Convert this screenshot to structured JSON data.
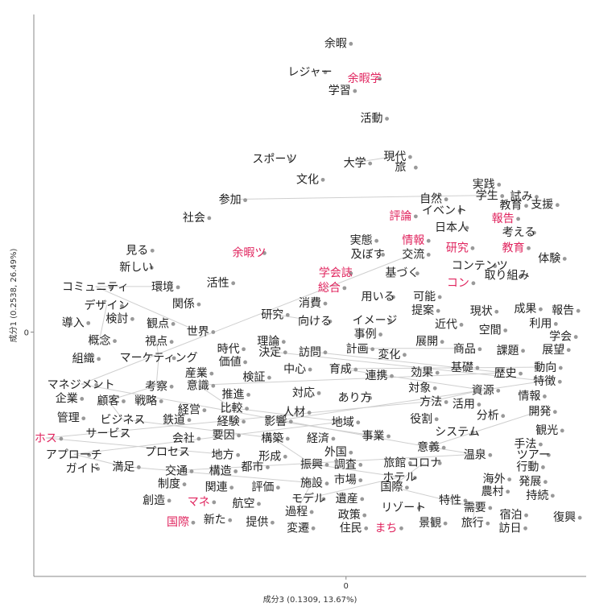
{
  "chart_data": {
    "type": "scatter",
    "xlabel": "成分3 (0.1309, 13.67%)",
    "ylabel": "成分1 (0.2538, 26.49%)",
    "xlim": [
      -3.9,
      3.0
    ],
    "ylim": [
      -3.0,
      3.9
    ],
    "x_ticks": [
      {
        "value": 0,
        "label": "0"
      }
    ],
    "y_ticks": [
      {
        "value": 0,
        "label": "0"
      }
    ],
    "grid": false,
    "legend": "none",
    "colors": {
      "word": "#222222",
      "highlight": "#e0245e",
      "point": "#999999",
      "edge": "#cfcfcf",
      "axis": "#888888"
    },
    "points": [
      {
        "label": "余暇",
        "x": -0.13,
        "y": 3.55,
        "hl": false
      },
      {
        "label": "レジャー",
        "x": -0.45,
        "y": 3.2,
        "hl": false
      },
      {
        "label": "余暇学",
        "x": 0.23,
        "y": 3.12,
        "hl": true
      },
      {
        "label": "学習",
        "x": -0.08,
        "y": 2.97,
        "hl": false
      },
      {
        "label": "活動",
        "x": 0.32,
        "y": 2.63,
        "hl": false
      },
      {
        "label": "スポーツ",
        "x": -0.89,
        "y": 2.13,
        "hl": false
      },
      {
        "label": "大学",
        "x": 0.11,
        "y": 2.08,
        "hl": false
      },
      {
        "label": "現代",
        "x": 0.61,
        "y": 2.16,
        "hl": false
      },
      {
        "label": "旅",
        "x": 0.68,
        "y": 2.03,
        "hl": false
      },
      {
        "label": "文化",
        "x": -0.48,
        "y": 1.88,
        "hl": false
      },
      {
        "label": "実践",
        "x": 1.72,
        "y": 1.82,
        "hl": false
      },
      {
        "label": "学生",
        "x": 1.76,
        "y": 1.68,
        "hl": false
      },
      {
        "label": "試み",
        "x": 2.19,
        "y": 1.67,
        "hl": false
      },
      {
        "label": "参加",
        "x": -1.45,
        "y": 1.63,
        "hl": false
      },
      {
        "label": "自然",
        "x": 1.06,
        "y": 1.64,
        "hl": false
      },
      {
        "label": "教育",
        "x": 2.06,
        "y": 1.56,
        "hl": false
      },
      {
        "label": "支援",
        "x": 2.45,
        "y": 1.57,
        "hl": false
      },
      {
        "label": "イベント",
        "x": 1.23,
        "y": 1.5,
        "hl": false
      },
      {
        "label": "評論",
        "x": 0.68,
        "y": 1.43,
        "hl": true
      },
      {
        "label": "報告",
        "x": 1.96,
        "y": 1.4,
        "hl": true
      },
      {
        "label": "社会",
        "x": -1.9,
        "y": 1.41,
        "hl": false
      },
      {
        "label": "日本人",
        "x": 1.32,
        "y": 1.29,
        "hl": false
      },
      {
        "label": "考える",
        "x": 2.16,
        "y": 1.23,
        "hl": false
      },
      {
        "label": "実態",
        "x": 0.19,
        "y": 1.13,
        "hl": false
      },
      {
        "label": "情報",
        "x": 0.84,
        "y": 1.13,
        "hl": true
      },
      {
        "label": "研究",
        "x": 1.39,
        "y": 1.04,
        "hl": true
      },
      {
        "label": "教育",
        "x": 2.09,
        "y": 1.04,
        "hl": true
      },
      {
        "label": "見る",
        "x": -2.61,
        "y": 1.01,
        "hl": false
      },
      {
        "label": "余暇ツ",
        "x": -1.21,
        "y": 0.98,
        "hl": true
      },
      {
        "label": "及ぼす",
        "x": 0.27,
        "y": 0.96,
        "hl": false
      },
      {
        "label": "交流",
        "x": 0.84,
        "y": 0.96,
        "hl": false
      },
      {
        "label": "体験",
        "x": 2.54,
        "y": 0.91,
        "hl": false
      },
      {
        "label": "新しい",
        "x": -2.62,
        "y": 0.8,
        "hl": false
      },
      {
        "label": "コンテンツ",
        "x": 1.67,
        "y": 0.82,
        "hl": false
      },
      {
        "label": "学会誌",
        "x": -0.13,
        "y": 0.73,
        "hl": true
      },
      {
        "label": "基づく",
        "x": 0.7,
        "y": 0.73,
        "hl": false
      },
      {
        "label": "取り組み",
        "x": 2.01,
        "y": 0.7,
        "hl": false
      },
      {
        "label": "コミュニティ",
        "x": -3.13,
        "y": 0.56,
        "hl": false
      },
      {
        "label": "環境",
        "x": -2.29,
        "y": 0.56,
        "hl": false
      },
      {
        "label": "活性",
        "x": -1.6,
        "y": 0.61,
        "hl": false
      },
      {
        "label": "コン",
        "x": 1.4,
        "y": 0.61,
        "hl": true
      },
      {
        "label": "総合",
        "x": -0.21,
        "y": 0.55,
        "hl": true
      },
      {
        "label": "用いる",
        "x": 0.4,
        "y": 0.44,
        "hl": false
      },
      {
        "label": "可能",
        "x": 0.98,
        "y": 0.44,
        "hl": false
      },
      {
        "label": "消費",
        "x": -0.45,
        "y": 0.36,
        "hl": false
      },
      {
        "label": "デザイン",
        "x": -2.99,
        "y": 0.33,
        "hl": false
      },
      {
        "label": "関係",
        "x": -2.03,
        "y": 0.35,
        "hl": false
      },
      {
        "label": "現状",
        "x": 1.69,
        "y": 0.26,
        "hl": false
      },
      {
        "label": "成果",
        "x": 2.24,
        "y": 0.29,
        "hl": false
      },
      {
        "label": "報告",
        "x": 2.71,
        "y": 0.27,
        "hl": false
      },
      {
        "label": "提案",
        "x": 0.96,
        "y": 0.27,
        "hl": false
      },
      {
        "label": "研究",
        "x": -0.92,
        "y": 0.22,
        "hl": false
      },
      {
        "label": "向ける",
        "x": -0.39,
        "y": 0.14,
        "hl": false
      },
      {
        "label": "検討",
        "x": -2.86,
        "y": 0.17,
        "hl": false
      },
      {
        "label": "イメージ",
        "x": 0.36,
        "y": 0.15,
        "hl": false
      },
      {
        "label": "導入",
        "x": -3.41,
        "y": 0.12,
        "hl": false
      },
      {
        "label": "観点",
        "x": -2.35,
        "y": 0.11,
        "hl": false
      },
      {
        "label": "近代",
        "x": 1.25,
        "y": 0.1,
        "hl": false
      },
      {
        "label": "利用",
        "x": 2.43,
        "y": 0.11,
        "hl": false
      },
      {
        "label": "空間",
        "x": 1.8,
        "y": 0.03,
        "hl": false
      },
      {
        "label": "世界",
        "x": -1.85,
        "y": 0.01,
        "hl": false
      },
      {
        "label": "事例",
        "x": 0.24,
        "y": -0.02,
        "hl": false
      },
      {
        "label": "学会",
        "x": 2.68,
        "y": -0.05,
        "hl": false
      },
      {
        "label": "概念",
        "x": -3.08,
        "y": -0.1,
        "hl": false
      },
      {
        "label": "視点",
        "x": -2.37,
        "y": -0.11,
        "hl": false
      },
      {
        "label": "理論",
        "x": -0.97,
        "y": -0.11,
        "hl": false
      },
      {
        "label": "展開",
        "x": 1.01,
        "y": -0.11,
        "hl": false
      },
      {
        "label": "時代",
        "x": -1.47,
        "y": -0.2,
        "hl": false
      },
      {
        "label": "計画",
        "x": 0.14,
        "y": -0.2,
        "hl": false
      },
      {
        "label": "商品",
        "x": 1.48,
        "y": -0.2,
        "hl": false
      },
      {
        "label": "課題",
        "x": 2.02,
        "y": -0.22,
        "hl": false
      },
      {
        "label": "展望",
        "x": 2.59,
        "y": -0.21,
        "hl": false
      },
      {
        "label": "決定",
        "x": -0.95,
        "y": -0.24,
        "hl": false
      },
      {
        "label": "訪問",
        "x": -0.45,
        "y": -0.24,
        "hl": false
      },
      {
        "label": "変化",
        "x": 0.54,
        "y": -0.27,
        "hl": false
      },
      {
        "label": "組織",
        "x": -3.28,
        "y": -0.32,
        "hl": false
      },
      {
        "label": "マーケティング",
        "x": -2.34,
        "y": -0.31,
        "hl": false
      },
      {
        "label": "価値",
        "x": -1.45,
        "y": -0.36,
        "hl": false
      },
      {
        "label": "中心",
        "x": -0.64,
        "y": -0.45,
        "hl": false
      },
      {
        "label": "育成",
        "x": -0.07,
        "y": -0.45,
        "hl": false
      },
      {
        "label": "動向",
        "x": 2.49,
        "y": -0.43,
        "hl": false
      },
      {
        "label": "基礎",
        "x": 1.45,
        "y": -0.43,
        "hl": false
      },
      {
        "label": "歴史",
        "x": 1.99,
        "y": -0.5,
        "hl": false
      },
      {
        "label": "効果",
        "x": 0.95,
        "y": -0.49,
        "hl": false
      },
      {
        "label": "産業",
        "x": -1.87,
        "y": -0.5,
        "hl": false
      },
      {
        "label": "連携",
        "x": 0.38,
        "y": -0.53,
        "hl": false
      },
      {
        "label": "検証",
        "x": -1.15,
        "y": -0.55,
        "hl": false
      },
      {
        "label": "特徴",
        "x": 2.48,
        "y": -0.6,
        "hl": false
      },
      {
        "label": "マネジメント",
        "x": -3.31,
        "y": -0.64,
        "hl": false
      },
      {
        "label": "考察",
        "x": -2.37,
        "y": -0.66,
        "hl": false
      },
      {
        "label": "意識",
        "x": -1.85,
        "y": -0.65,
        "hl": false
      },
      {
        "label": "対象",
        "x": 0.92,
        "y": -0.68,
        "hl": false
      },
      {
        "label": "資源",
        "x": 1.71,
        "y": -0.71,
        "hl": false
      },
      {
        "label": "推進",
        "x": -1.41,
        "y": -0.76,
        "hl": false
      },
      {
        "label": "情報",
        "x": 2.29,
        "y": -0.78,
        "hl": false
      },
      {
        "label": "企業",
        "x": -3.49,
        "y": -0.81,
        "hl": false
      },
      {
        "label": "顧客",
        "x": -2.97,
        "y": -0.84,
        "hl": false
      },
      {
        "label": "戦略",
        "x": -2.5,
        "y": -0.84,
        "hl": false
      },
      {
        "label": "対応",
        "x": -0.53,
        "y": -0.74,
        "hl": false
      },
      {
        "label": "あり方",
        "x": 0.11,
        "y": -0.8,
        "hl": false
      },
      {
        "label": "方法",
        "x": 1.06,
        "y": -0.85,
        "hl": false
      },
      {
        "label": "比較",
        "x": -1.43,
        "y": -0.93,
        "hl": false
      },
      {
        "label": "活用",
        "x": 1.47,
        "y": -0.88,
        "hl": false
      },
      {
        "label": "経営",
        "x": -1.96,
        "y": -0.95,
        "hl": false
      },
      {
        "label": "開発",
        "x": 2.42,
        "y": -0.97,
        "hl": false
      },
      {
        "label": "人材",
        "x": -0.65,
        "y": -0.98,
        "hl": false
      },
      {
        "label": "分析",
        "x": 1.77,
        "y": -1.02,
        "hl": false
      },
      {
        "label": "管理",
        "x": -3.47,
        "y": -1.05,
        "hl": false
      },
      {
        "label": "ビジネス",
        "x": -2.79,
        "y": -1.07,
        "hl": false
      },
      {
        "label": "鉄道",
        "x": -2.15,
        "y": -1.07,
        "hl": false
      },
      {
        "label": "経験",
        "x": -1.47,
        "y": -1.09,
        "hl": false
      },
      {
        "label": "影響",
        "x": -0.88,
        "y": -1.09,
        "hl": false
      },
      {
        "label": "役割",
        "x": 0.94,
        "y": -1.06,
        "hl": false
      },
      {
        "label": "地域",
        "x": -0.04,
        "y": -1.1,
        "hl": false
      },
      {
        "label": "サービス",
        "x": -2.97,
        "y": -1.24,
        "hl": false
      },
      {
        "label": "要因",
        "x": -1.53,
        "y": -1.26,
        "hl": false
      },
      {
        "label": "システム",
        "x": 1.39,
        "y": -1.22,
        "hl": false
      },
      {
        "label": "観光",
        "x": 2.51,
        "y": -1.2,
        "hl": false
      },
      {
        "label": "ホス",
        "x": -3.75,
        "y": -1.3,
        "hl": true
      },
      {
        "label": "会社",
        "x": -2.03,
        "y": -1.3,
        "hl": false
      },
      {
        "label": "事業",
        "x": 0.34,
        "y": -1.27,
        "hl": false
      },
      {
        "label": "構築",
        "x": -0.92,
        "y": -1.3,
        "hl": false
      },
      {
        "label": "経済",
        "x": -0.35,
        "y": -1.3,
        "hl": false
      },
      {
        "label": "手法",
        "x": 2.24,
        "y": -1.37,
        "hl": false
      },
      {
        "label": "意義",
        "x": 1.03,
        "y": -1.41,
        "hl": false
      },
      {
        "label": "外国",
        "x": -0.13,
        "y": -1.47,
        "hl": false
      },
      {
        "label": "アプローチ",
        "x": -3.4,
        "y": -1.5,
        "hl": false
      },
      {
        "label": "プロセス",
        "x": -2.23,
        "y": -1.47,
        "hl": false
      },
      {
        "label": "地方",
        "x": -1.54,
        "y": -1.5,
        "hl": false
      },
      {
        "label": "形成",
        "x": -0.95,
        "y": -1.52,
        "hl": false
      },
      {
        "label": "温泉",
        "x": 1.61,
        "y": -1.5,
        "hl": false
      },
      {
        "label": "ツアー",
        "x": 2.34,
        "y": -1.5,
        "hl": false
      },
      {
        "label": "旅館",
        "x": 0.61,
        "y": -1.6,
        "hl": false
      },
      {
        "label": "コロナ",
        "x": 0.98,
        "y": -1.6,
        "hl": false
      },
      {
        "label": "振興",
        "x": -0.43,
        "y": -1.62,
        "hl": false
      },
      {
        "label": "調査",
        "x": -0.01,
        "y": -1.62,
        "hl": false
      },
      {
        "label": "都市",
        "x": -1.17,
        "y": -1.65,
        "hl": false
      },
      {
        "label": "ガイド",
        "x": -3.29,
        "y": -1.67,
        "hl": false
      },
      {
        "label": "満足",
        "x": -2.78,
        "y": -1.65,
        "hl": false
      },
      {
        "label": "行動",
        "x": 2.27,
        "y": -1.65,
        "hl": false
      },
      {
        "label": "交通",
        "x": -2.12,
        "y": -1.7,
        "hl": false
      },
      {
        "label": "構造",
        "x": -1.57,
        "y": -1.7,
        "hl": false
      },
      {
        "label": "ホテル",
        "x": 0.67,
        "y": -1.78,
        "hl": false
      },
      {
        "label": "海外",
        "x": 1.85,
        "y": -1.8,
        "hl": false
      },
      {
        "label": "市場",
        "x": -0.01,
        "y": -1.81,
        "hl": false
      },
      {
        "label": "発展",
        "x": 2.3,
        "y": -1.83,
        "hl": false
      },
      {
        "label": "制度",
        "x": -2.21,
        "y": -1.86,
        "hl": false
      },
      {
        "label": "関連",
        "x": -1.62,
        "y": -1.9,
        "hl": false
      },
      {
        "label": "評価",
        "x": -1.04,
        "y": -1.9,
        "hl": false
      },
      {
        "label": "施設",
        "x": -0.43,
        "y": -1.85,
        "hl": false
      },
      {
        "label": "国際",
        "x": 0.57,
        "y": -1.9,
        "hl": false
      },
      {
        "label": "農村",
        "x": 1.83,
        "y": -1.95,
        "hl": false
      },
      {
        "label": "持続",
        "x": 2.39,
        "y": -2.0,
        "hl": false
      },
      {
        "label": "特性",
        "x": 1.3,
        "y": -2.06,
        "hl": false
      },
      {
        "label": "創造",
        "x": -2.4,
        "y": -2.06,
        "hl": false
      },
      {
        "label": "マネ",
        "x": -1.84,
        "y": -2.08,
        "hl": true
      },
      {
        "label": "航空",
        "x": -1.28,
        "y": -2.1,
        "hl": false
      },
      {
        "label": "モデル",
        "x": -0.47,
        "y": -2.04,
        "hl": false
      },
      {
        "label": "遺産",
        "x": 0.01,
        "y": -2.04,
        "hl": false
      },
      {
        "label": "リゾート",
        "x": 0.72,
        "y": -2.15,
        "hl": false
      },
      {
        "label": "需要",
        "x": 1.61,
        "y": -2.15,
        "hl": false
      },
      {
        "label": "過程",
        "x": -0.62,
        "y": -2.2,
        "hl": false
      },
      {
        "label": "政策",
        "x": 0.04,
        "y": -2.24,
        "hl": false
      },
      {
        "label": "宿泊",
        "x": 2.06,
        "y": -2.24,
        "hl": false
      },
      {
        "label": "復興",
        "x": 2.73,
        "y": -2.27,
        "hl": false
      },
      {
        "label": "新た",
        "x": -1.64,
        "y": -2.3,
        "hl": false
      },
      {
        "label": "提供",
        "x": -1.11,
        "y": -2.33,
        "hl": false
      },
      {
        "label": "国際",
        "x": -2.1,
        "y": -2.33,
        "hl": true
      },
      {
        "label": "旅行",
        "x": 1.58,
        "y": -2.34,
        "hl": false
      },
      {
        "label": "景観",
        "x": 1.05,
        "y": -2.34,
        "hl": false
      },
      {
        "label": "変遷",
        "x": -0.6,
        "y": -2.4,
        "hl": false
      },
      {
        "label": "住民",
        "x": 0.06,
        "y": -2.4,
        "hl": false
      },
      {
        "label": "まち",
        "x": 0.5,
        "y": -2.4,
        "hl": true
      },
      {
        "label": "訪日",
        "x": 2.05,
        "y": -2.4,
        "hl": false
      }
    ],
    "edges": [
      [
        6,
        7
      ],
      [
        11,
        13
      ],
      [
        37,
        38
      ],
      [
        51,
        52
      ],
      [
        68,
        69
      ],
      [
        79,
        80
      ],
      [
        30,
        88
      ],
      [
        37,
        60
      ],
      [
        45,
        63
      ],
      [
        79,
        92
      ],
      [
        92,
        100
      ],
      [
        100,
        118
      ],
      [
        118,
        128
      ],
      [
        88,
        124
      ],
      [
        124,
        130
      ],
      [
        130,
        140
      ],
      [
        72,
        87
      ],
      [
        87,
        111
      ],
      [
        111,
        120
      ],
      [
        104,
        124
      ],
      [
        133,
        150
      ],
      [
        150,
        160
      ],
      [
        160,
        168
      ],
      [
        64,
        76
      ],
      [
        76,
        89
      ],
      [
        89,
        96
      ],
      [
        96,
        108
      ],
      [
        108,
        121
      ],
      [
        121,
        134
      ],
      [
        134,
        142
      ],
      [
        142,
        157
      ],
      [
        73,
        82
      ],
      [
        82,
        90
      ],
      [
        90,
        101
      ],
      [
        101,
        113
      ],
      [
        113,
        126
      ],
      [
        126,
        138
      ],
      [
        138,
        149
      ],
      [
        149,
        161
      ]
    ]
  }
}
